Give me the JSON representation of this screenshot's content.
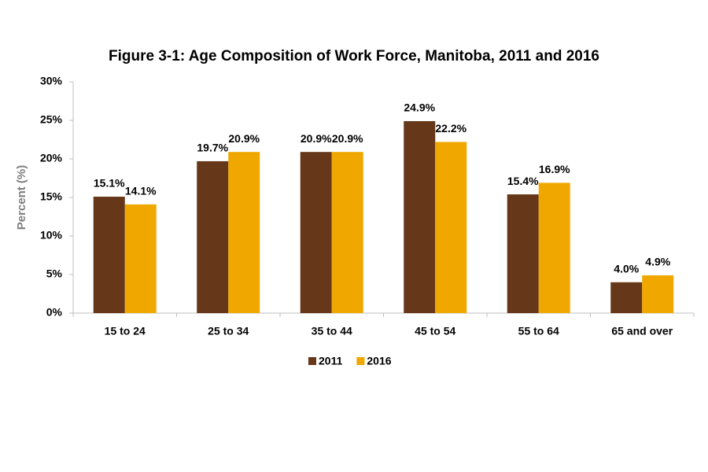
{
  "chart_data": {
    "type": "bar",
    "title": "Figure 3-1: Age Composition of Work Force, Manitoba, 2011 and 2016",
    "y_label": "Percent (%)",
    "categories": [
      "15 to 24",
      "25 to 34",
      "35 to 44",
      "45 to 54",
      "55 to 64",
      "65 and over"
    ],
    "series": [
      {
        "name": "2011",
        "color": "#663718",
        "values": [
          15.1,
          19.7,
          20.9,
          24.9,
          15.4,
          4.0
        ],
        "value_labels": [
          "15.1%",
          "19.7%",
          "20.9%",
          "24.9%",
          "15.4%",
          "4.0%"
        ]
      },
      {
        "name": "2016",
        "color": "#f0a800",
        "values": [
          14.1,
          20.9,
          20.9,
          22.2,
          16.9,
          4.9
        ],
        "value_labels": [
          "14.1%",
          "20.9%",
          "20.9%",
          "22.2%",
          "16.9%",
          "4.9%"
        ]
      }
    ],
    "ylim": [
      0,
      30
    ],
    "yticks": [
      {
        "value": 0,
        "label": "0%"
      },
      {
        "value": 5,
        "label": "5%"
      },
      {
        "value": 10,
        "label": "10%"
      },
      {
        "value": 15,
        "label": "15%"
      },
      {
        "value": 20,
        "label": "20%"
      },
      {
        "value": 25,
        "label": "25%"
      },
      {
        "value": 30,
        "label": "30%"
      }
    ],
    "grid": false,
    "legend": "bottom"
  }
}
